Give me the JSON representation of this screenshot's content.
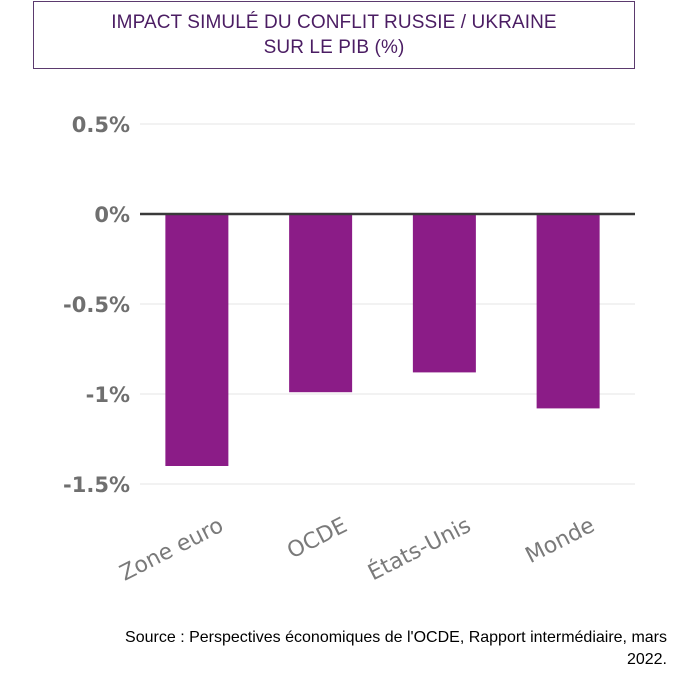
{
  "title_lines": [
    "IMPACT SIMULÉ DU CONFLIT RUSSIE / UKRAINE",
    "SUR LE PIB  (%)"
  ],
  "source_lines": [
    "Source :  Perspectives économiques de l'OCDE, Rapport intermédiaire, mars",
    "2022."
  ],
  "colors": {
    "bar": "#8b1c87",
    "zero_line": "#3a3a3a",
    "grid": "#e4e4e4",
    "title": "#4b1d63"
  },
  "chart_data": {
    "type": "bar",
    "title": "IMPACT SIMULÉ DU CONFLIT RUSSIE / UKRAINE SUR LE PIB  (%)",
    "xlabel": "",
    "ylabel": "",
    "categories": [
      "Zone euro",
      "OCDE",
      "États-Unis",
      "Monde"
    ],
    "values": [
      -1.4,
      -0.99,
      -0.88,
      -1.08
    ],
    "ylim": [
      -1.5,
      0.5
    ],
    "yticks": [
      0.5,
      0,
      -0.5,
      -1,
      -1.5
    ],
    "ytick_labels": [
      "0.5%",
      "0%",
      "-0.5%",
      "-1%",
      "-1.5%"
    ],
    "grid": true,
    "legend": "none"
  }
}
